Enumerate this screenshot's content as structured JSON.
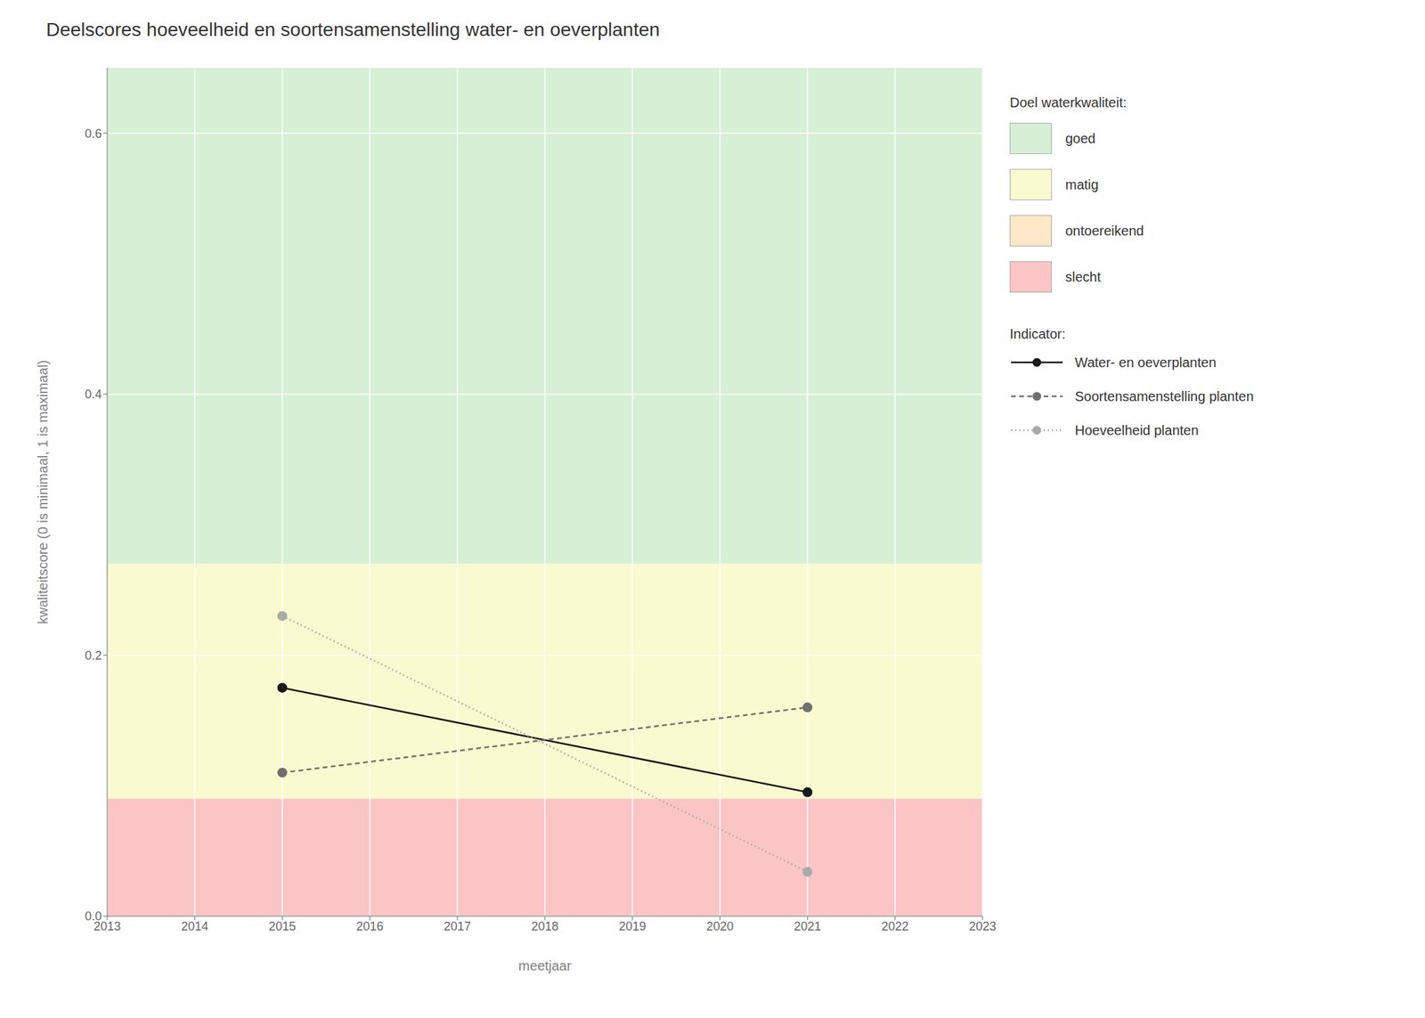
{
  "chart_data": {
    "type": "line",
    "title": "Deelscores hoeveelheid en soortensamenstelling water- en oeverplanten",
    "x_label": "meetjaar",
    "y_label": "kwaliteitscore (0 is minimaal, 1 is maximaal)",
    "x": [
      2015,
      2021
    ],
    "series": [
      {
        "name": "Water- en oeverplanten",
        "color": "#1a1a1a",
        "line_style": "solid",
        "marker": "circle",
        "values": [
          0.175,
          0.095
        ]
      },
      {
        "name": "Soortensamenstelling planten",
        "color": "#707070",
        "line_style": "dashed",
        "marker": "circle",
        "values": [
          0.11,
          0.16
        ]
      },
      {
        "name": "Hoeveelheid planten",
        "color": "#aaaaaa",
        "line_style": "dotted",
        "marker": "circle",
        "values": [
          0.23,
          0.034
        ]
      }
    ],
    "xlim": [
      2013,
      2023
    ],
    "xticks": [
      2013,
      2014,
      2015,
      2016,
      2017,
      2018,
      2019,
      2020,
      2021,
      2022,
      2023
    ],
    "ylim": [
      0.0,
      0.65
    ],
    "yticks": [
      {
        "value": 0.0,
        "label": "0.0"
      },
      0.2,
      0.4,
      0.6
    ],
    "grid": true,
    "legend": "right",
    "legend_title": "Indicator:",
    "bands": [
      {
        "ymin": 0.0,
        "ymax": 0.09,
        "color": "#fcc5c5"
      },
      {
        "ymin": 0.09,
        "ymax": 0.27,
        "color": "#fafad0"
      },
      {
        "ymin": 0.27,
        "ymax": 0.65,
        "color": "#d6f0d6"
      }
    ],
    "band_legend": {
      "title": "Doel waterkwaliteit:",
      "labels": [
        "goed",
        "matig",
        "ontoereikend",
        "slecht"
      ],
      "colors": [
        "#d6f0d6",
        "#fafad0",
        "#fde8c8",
        "#fcc5c5"
      ]
    }
  }
}
